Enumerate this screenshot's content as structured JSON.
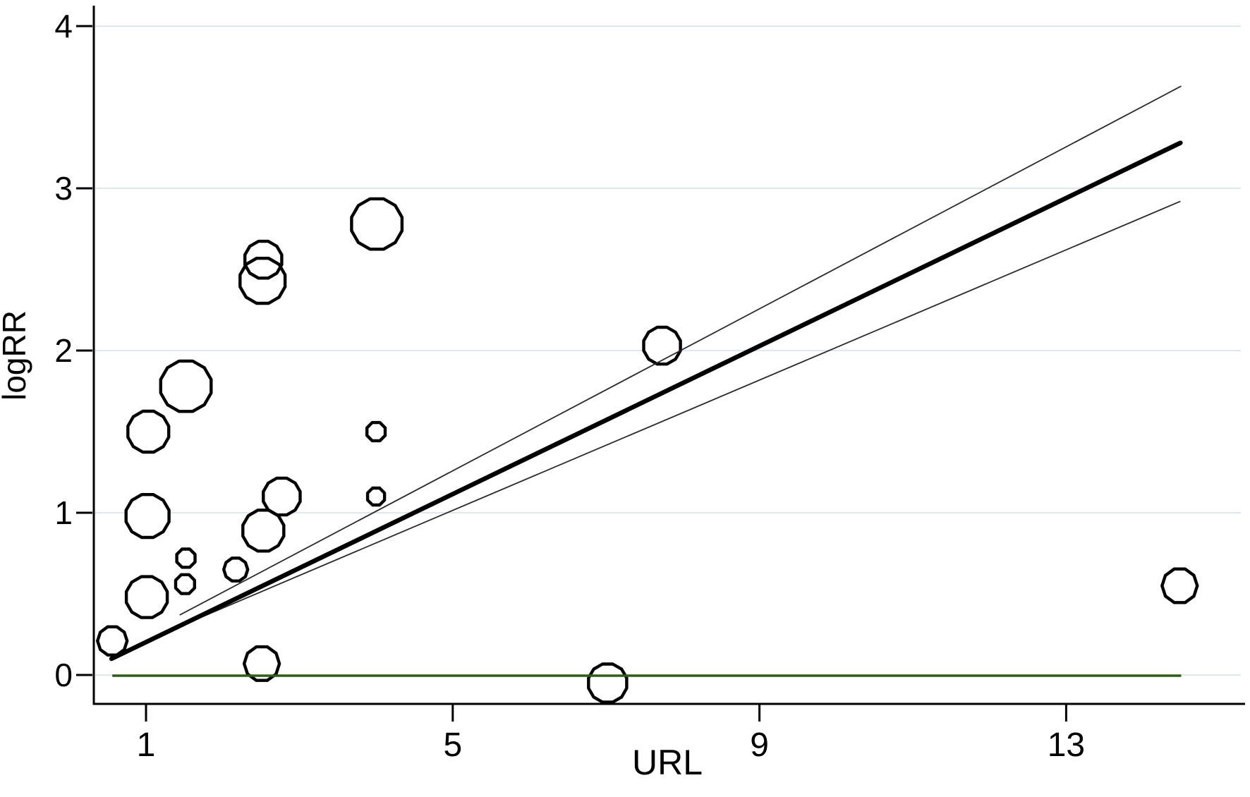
{
  "chart_data": {
    "type": "scatter",
    "subtype": "meta-regression-bubble-plot",
    "title": "",
    "xlabel": "URL",
    "ylabel": "logRR",
    "x_ticks": [
      1,
      5,
      9,
      13
    ],
    "y_ticks": [
      0,
      1,
      2,
      3,
      4
    ],
    "xlim": [
      0.32,
      15.28
    ],
    "ylim": [
      -0.18,
      4.12
    ],
    "grid": "horizontal-only",
    "legend": "none",
    "bubbles": [
      {
        "x": 0.56,
        "y": 0.21,
        "r": 21
      },
      {
        "x": 1.01,
        "y": 0.48,
        "r": 30
      },
      {
        "x": 1.02,
        "y": 0.98,
        "r": 31.5
      },
      {
        "x": 1.03,
        "y": 1.5,
        "r": 30
      },
      {
        "x": 1.52,
        "y": 1.78,
        "r": 37
      },
      {
        "x": 1.52,
        "y": 0.72,
        "r": 14
      },
      {
        "x": 1.51,
        "y": 0.56,
        "r": 14.5
      },
      {
        "x": 2.17,
        "y": 0.65,
        "r": 17
      },
      {
        "x": 2.51,
        "y": 0.07,
        "r": 25
      },
      {
        "x": 2.53,
        "y": 2.56,
        "r": 27
      },
      {
        "x": 2.52,
        "y": 2.43,
        "r": 33
      },
      {
        "x": 2.53,
        "y": 0.89,
        "r": 30
      },
      {
        "x": 2.77,
        "y": 1.1,
        "r": 27
      },
      {
        "x": 4.01,
        "y": 2.78,
        "r": 37
      },
      {
        "x": 4.0,
        "y": 1.5,
        "r": 14
      },
      {
        "x": 4.0,
        "y": 1.1,
        "r": 13
      },
      {
        "x": 7.73,
        "y": 2.03,
        "r": 27
      },
      {
        "x": 7.02,
        "y": -0.05,
        "r": 28
      },
      {
        "x": 14.48,
        "y": 0.55,
        "r": 25
      }
    ],
    "regression_line": {
      "x1": 0.55,
      "y1": 0.1,
      "x2": 14.49,
      "y2": 3.28
    },
    "ci_upper_line": {
      "x1": 1.44,
      "y1": 0.37,
      "x2": 14.5,
      "y2": 3.63
    },
    "ci_lower_line": {
      "x1": 1.44,
      "y1": 0.3,
      "x2": 14.49,
      "y2": 2.92
    },
    "reference_line": {
      "y": 0.0,
      "x1": 0.56,
      "x2": 14.5
    },
    "colors": {
      "bubble_stroke": "#000000",
      "bubble_fill": "#ffffff",
      "regression": "#000000",
      "ci": "#2a2a2a",
      "reference": "#2e5f16",
      "grid": "#dce8ee",
      "axis": "#000000",
      "background": "#ffffff"
    }
  }
}
